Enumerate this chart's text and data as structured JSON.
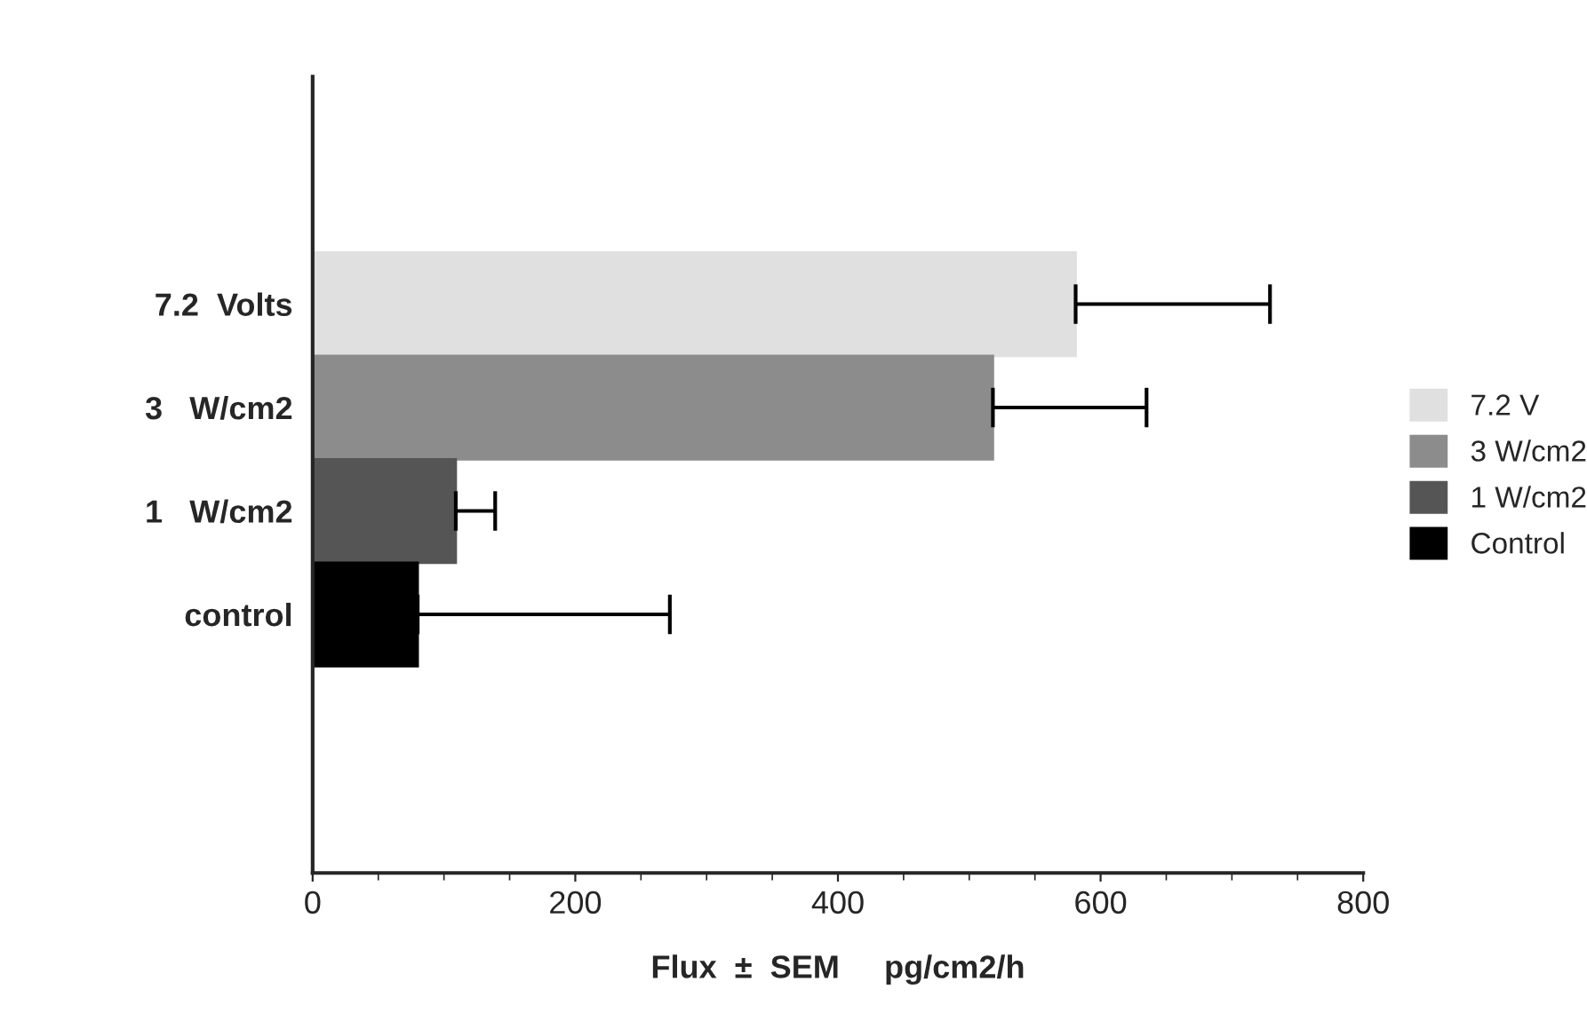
{
  "chart_data": {
    "type": "bar",
    "orientation": "horizontal",
    "xlabel": "Flux  ±  SEM     pg/cm2/h",
    "categories": [
      "7.2  Volts",
      "3   W/cm2",
      "1   W/cm2",
      "control"
    ],
    "series": [
      {
        "name": "7.2 V",
        "color": "#e0e0e0",
        "values": [
          581,
          null,
          null,
          null
        ],
        "errors": [
          [
            581,
            729
          ],
          null,
          null,
          null
        ]
      },
      {
        "name": "3 W/cm2",
        "color": "#8c8c8c",
        "values": [
          null,
          518,
          null,
          null
        ],
        "errors": [
          null,
          [
            518,
            635
          ],
          null,
          null
        ]
      },
      {
        "name": "1 W/cm2",
        "color": "#555555",
        "values": [
          null,
          null,
          109,
          null
        ],
        "errors": [
          null,
          null,
          [
            109,
            139
          ],
          null
        ]
      },
      {
        "name": "Control",
        "color": "#000000",
        "values": [
          null,
          null,
          null,
          80
        ],
        "errors": [
          null,
          null,
          null,
          [
            80,
            272
          ]
        ]
      }
    ],
    "xlim": [
      0,
      800
    ],
    "xticks": [
      0,
      200,
      400,
      600,
      800
    ],
    "legend": "right",
    "grid": false
  }
}
